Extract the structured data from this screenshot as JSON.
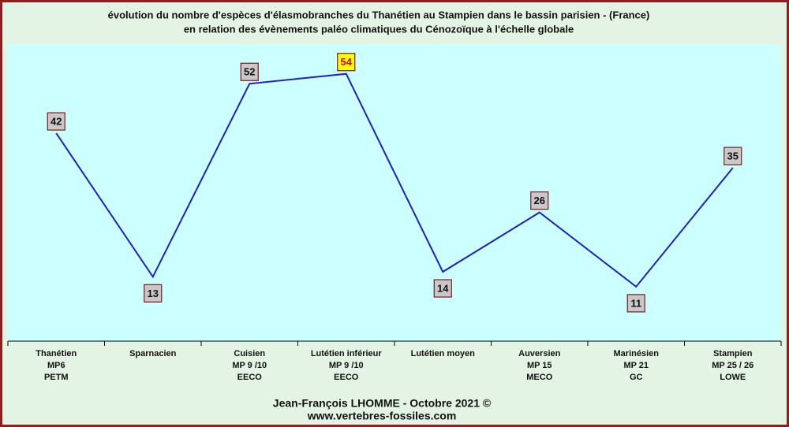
{
  "chart_data": {
    "type": "line",
    "title": "évolution du nombre d'espèces d'élasmobranches du Thanétien au Stampien dans le bassin parisien - (France)",
    "subtitle": "en relation des évènements paléo climatiques du Cénozoïque à l'échelle globale",
    "categories": [
      [
        "Thanétien",
        "MP6",
        "PETM"
      ],
      [
        "Sparnacien"
      ],
      [
        "Cuisien",
        "MP 9 /10",
        "EECO"
      ],
      [
        "Lutétien inférieur",
        "MP 9 /10",
        "EECO"
      ],
      [
        "Lutétien moyen"
      ],
      [
        "Auversien",
        "MP 15",
        "MECO"
      ],
      [
        "Marinésien",
        "MP 21",
        "GC"
      ],
      [
        "Stampien",
        "MP 25 / 26",
        "LOWE"
      ]
    ],
    "values": [
      42,
      13,
      52,
      54,
      14,
      26,
      11,
      35
    ],
    "color": "#1f1fc8",
    "label_fill": "#c8c8c8",
    "highlight_fill": "#ffff00",
    "highlight_text": "#e00000",
    "ylim": [
      0,
      60
    ],
    "footer": [
      "Jean-François LHOMME  -  Octobre 2021 ©",
      "www.vertebres-fossiles.com"
    ]
  }
}
